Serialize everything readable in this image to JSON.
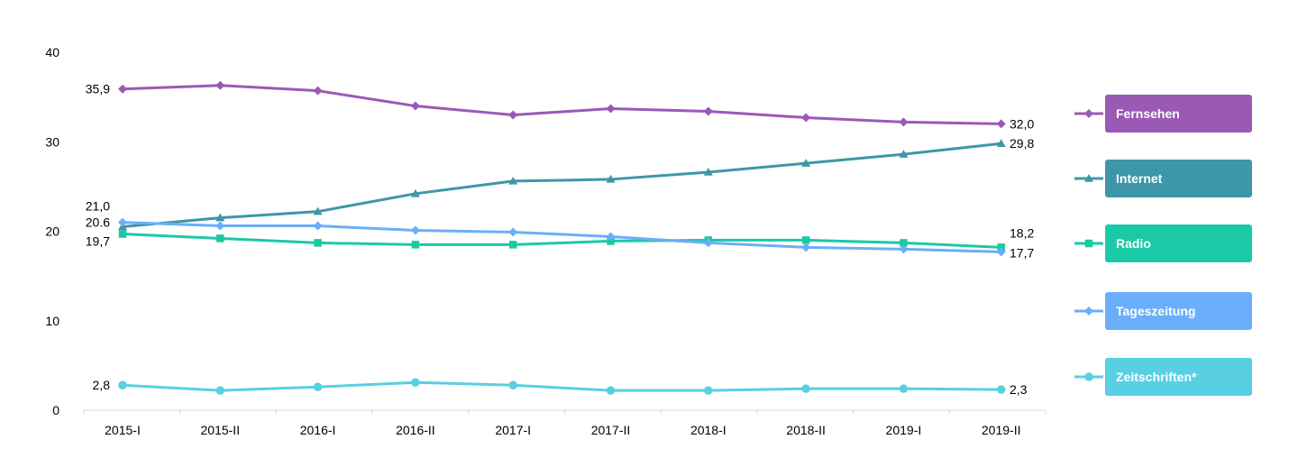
{
  "chart_data": {
    "type": "line",
    "categories": [
      "2015-I",
      "2015-II",
      "2016-I",
      "2016-II",
      "2017-I",
      "2017-II",
      "2018-I",
      "2018-II",
      "2019-I",
      "2019-II"
    ],
    "ylim": [
      0,
      40
    ],
    "yticks": [
      "0",
      "10",
      "20",
      "30",
      "40"
    ],
    "yticks_values": [
      0,
      10,
      20,
      30,
      40
    ],
    "grid": false,
    "legend_placement": "right",
    "series": [
      {
        "name": "Fernsehen",
        "color": "#9b59b6",
        "marker": "diamond",
        "values": [
          35.9,
          36.3,
          35.7,
          34.0,
          33.0,
          33.7,
          33.4,
          32.7,
          32.2,
          32.0
        ],
        "start_label": "35,9",
        "end_label": "32,0"
      },
      {
        "name": "Internet",
        "color": "#3d97a8",
        "marker": "triangle",
        "values": [
          20.5,
          21.5,
          22.2,
          24.2,
          25.6,
          25.8,
          26.6,
          27.6,
          28.6,
          29.8
        ],
        "start_label": "",
        "end_label": "29,8"
      },
      {
        "name": "Radio",
        "color": "#1ac9a5",
        "marker": "square",
        "values": [
          19.7,
          19.2,
          18.7,
          18.5,
          18.5,
          18.9,
          19.0,
          19.0,
          18.7,
          18.2
        ],
        "start_label": "19,7",
        "end_label": "18,2"
      },
      {
        "name": "Tageszeitung",
        "color": "#6aaefa",
        "marker": "diamond",
        "values": [
          21.0,
          20.6,
          20.6,
          20.1,
          19.9,
          19.4,
          18.7,
          18.2,
          18.0,
          17.7
        ],
        "start_label": "21,0",
        "end_label": "17,7",
        "extra_label": "20.6"
      },
      {
        "name": "Zeitschriften*",
        "color": "#58cfe3",
        "marker": "circle",
        "values": [
          2.8,
          2.2,
          2.6,
          3.1,
          2.8,
          2.2,
          2.2,
          2.4,
          2.4,
          2.3
        ],
        "start_label": "2,8",
        "end_label": "2,3"
      }
    ]
  }
}
